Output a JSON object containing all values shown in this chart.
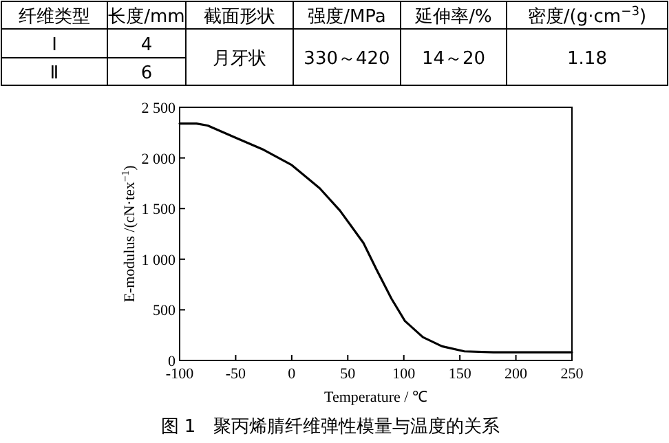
{
  "chart_data": [
    {
      "type": "other",
      "annotations": [
        "纤维类型",
        "长度/mm",
        "截面形状",
        "强度/MPa",
        "延伸率/%",
        "密度/(g·cm$^{−3}$)",
        "Ⅰ",
        "4",
        "月牙状",
        "330～420",
        "14～20",
        "1.18",
        "Ⅱ",
        "6"
      ]
    },
    {
      "type": "line",
      "title": "图 1　聚丙烯腈纤维弹性模量与温度的关系",
      "xlabel": "Temperature / ℃",
      "ylabel": "E-modulus /(cN·tex$^{−1}$)",
      "x": [
        -100,
        -85,
        -75,
        -50,
        -25,
        0,
        25,
        43,
        64,
        76,
        89,
        101,
        117,
        134,
        154,
        180,
        250
      ],
      "series": [
        {
          "color": "#000000",
          "values": [
            2340,
            2340,
            2320,
            2200,
            2080,
            1930,
            1700,
            1480,
            1160,
            890,
            610,
            390,
            230,
            140,
            90,
            80,
            80
          ]
        }
      ],
      "xlim": [
        -100,
        250
      ],
      "xticks": [
        -100,
        -50,
        0,
        50,
        100,
        150,
        200,
        250
      ],
      "ylim": [
        0,
        2500
      ],
      "yticks": [
        0,
        500,
        {
          "value": 1000,
          "label": "1 000"
        },
        {
          "value": 1500,
          "label": "1 500"
        },
        {
          "value": 2000,
          "label": "2 000"
        },
        {
          "value": 2500,
          "label": "2 500"
        }
      ],
      "grid": false,
      "marker": "none",
      "line_style": "solid"
    }
  ]
}
